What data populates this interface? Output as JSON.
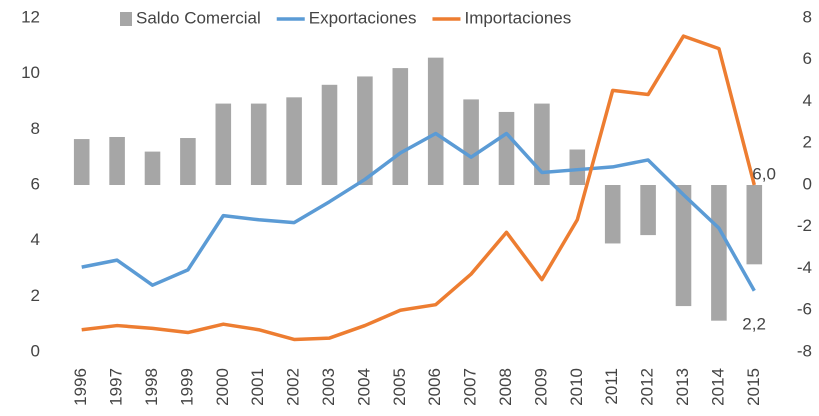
{
  "chart_data": {
    "type": "bar-line",
    "categories": [
      "1996",
      "1997",
      "1998",
      "1999",
      "2000",
      "2001",
      "2002",
      "2003",
      "2004",
      "2005",
      "2006",
      "2007",
      "2008",
      "2009",
      "2010",
      "2011",
      "2012",
      "2013",
      "2014",
      "2015"
    ],
    "series": [
      {
        "name": "Saldo Comercial",
        "type": "bar",
        "axis": "y2",
        "color": "#a6a6a6",
        "values": [
          2.2,
          2.3,
          1.6,
          2.25,
          3.9,
          3.9,
          4.2,
          4.8,
          5.2,
          5.6,
          6.1,
          4.1,
          3.5,
          3.9,
          1.7,
          -2.8,
          -2.4,
          -5.8,
          -6.5,
          -3.8
        ]
      },
      {
        "name": "Exportaciones",
        "type": "line",
        "axis": "y",
        "color": "#5b9bd5",
        "values": [
          3.05,
          3.3,
          2.4,
          2.95,
          4.9,
          4.75,
          4.65,
          5.4,
          6.2,
          7.15,
          7.85,
          7.0,
          7.85,
          6.45,
          6.55,
          6.65,
          6.9,
          5.65,
          4.45,
          2.2
        ],
        "value_labels": [
          null,
          null,
          null,
          null,
          null,
          null,
          null,
          null,
          null,
          null,
          null,
          null,
          null,
          null,
          null,
          null,
          null,
          null,
          null,
          "2,2"
        ]
      },
      {
        "name": "Importaciones",
        "type": "line",
        "axis": "y",
        "color": "#ed7d31",
        "values": [
          0.8,
          0.95,
          0.85,
          0.7,
          1.0,
          0.8,
          0.45,
          0.5,
          0.95,
          1.5,
          1.7,
          2.8,
          4.3,
          2.6,
          4.75,
          9.4,
          9.25,
          11.35,
          10.9,
          6.0
        ],
        "value_labels": [
          null,
          null,
          null,
          null,
          null,
          null,
          null,
          null,
          null,
          null,
          null,
          null,
          null,
          null,
          null,
          null,
          null,
          null,
          null,
          "6,0"
        ]
      }
    ],
    "ylim": [
      0,
      12
    ],
    "yticks": [
      0,
      2,
      4,
      6,
      8,
      10,
      12
    ],
    "y2lim": [
      -8,
      8
    ],
    "y2ticks": [
      -8,
      -6,
      -4,
      -2,
      0,
      2,
      4,
      6,
      8
    ],
    "legend": "top"
  }
}
